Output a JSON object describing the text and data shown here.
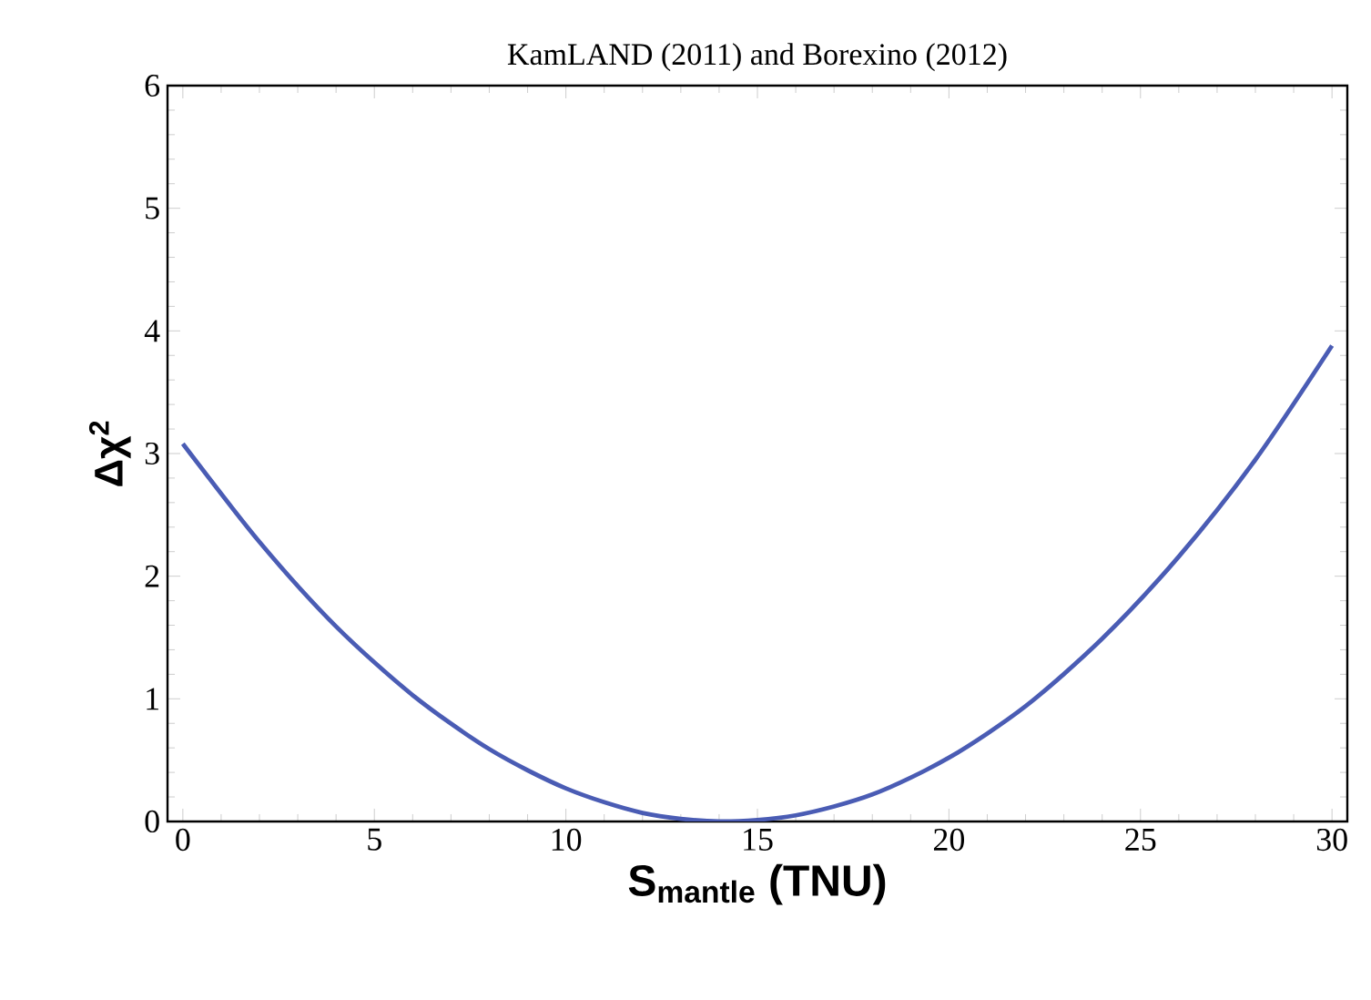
{
  "chart_data": {
    "type": "line",
    "title": "KamLAND (2011) and Borexino (2012)",
    "xlabel": "S$_{mantle}$ (TNU)",
    "ylabel": "Δχ$^{2}$",
    "x": [
      0,
      2,
      4,
      6,
      8,
      10,
      12,
      14,
      16,
      18,
      20,
      22,
      24,
      26,
      28,
      30
    ],
    "series": [
      {
        "color": "#4a5cb4",
        "values": [
          3.08,
          2.28,
          1.59,
          1.03,
          0.59,
          0.27,
          0.07,
          0.0,
          0.05,
          0.22,
          0.52,
          0.94,
          1.49,
          2.16,
          2.95,
          3.88
        ]
      }
    ],
    "xlim": [
      -0.4,
      30.4
    ],
    "ylim": [
      0,
      6
    ],
    "xticks": [
      0,
      5,
      10,
      15,
      20,
      25,
      30
    ],
    "yticks": [
      0,
      1,
      2,
      3,
      4,
      5,
      6
    ],
    "marker": "none",
    "line_style": "solid"
  }
}
